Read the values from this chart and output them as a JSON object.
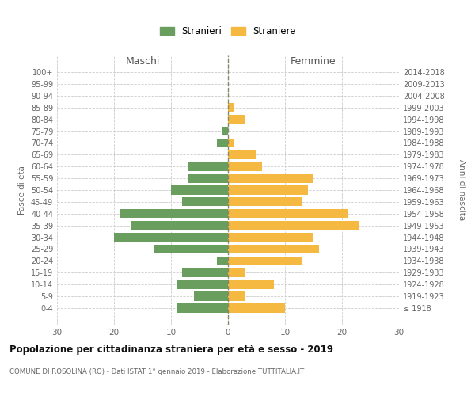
{
  "age_groups": [
    "100+",
    "95-99",
    "90-94",
    "85-89",
    "80-84",
    "75-79",
    "70-74",
    "65-69",
    "60-64",
    "55-59",
    "50-54",
    "45-49",
    "40-44",
    "35-39",
    "30-34",
    "25-29",
    "20-24",
    "15-19",
    "10-14",
    "5-9",
    "0-4"
  ],
  "birth_years": [
    "≤ 1918",
    "1919-1923",
    "1924-1928",
    "1929-1933",
    "1934-1938",
    "1939-1943",
    "1944-1948",
    "1949-1953",
    "1954-1958",
    "1959-1963",
    "1964-1968",
    "1969-1973",
    "1974-1978",
    "1979-1983",
    "1984-1988",
    "1989-1993",
    "1994-1998",
    "1999-2003",
    "2004-2008",
    "2009-2013",
    "2014-2018"
  ],
  "maschi": [
    0,
    0,
    0,
    0,
    0,
    1,
    2,
    0,
    7,
    7,
    10,
    8,
    19,
    17,
    20,
    13,
    2,
    8,
    9,
    6,
    9
  ],
  "femmine": [
    0,
    0,
    0,
    1,
    3,
    0,
    1,
    5,
    6,
    15,
    14,
    13,
    21,
    23,
    15,
    16,
    13,
    3,
    8,
    3,
    10
  ],
  "maschi_color": "#6a9e5e",
  "femmine_color": "#f5b942",
  "background_color": "#ffffff",
  "grid_color": "#cccccc",
  "title": "Popolazione per cittadinanza straniera per età e sesso - 2019",
  "subtitle": "COMUNE DI ROSOLINA (RO) - Dati ISTAT 1° gennaio 2019 - Elaborazione TUTTITALIA.IT",
  "ylabel_left": "Fasce di età",
  "ylabel_right": "Anni di nascita",
  "xlabel_left": "Maschi",
  "xlabel_right": "Femmine",
  "legend_maschi": "Stranieri",
  "legend_femmine": "Straniere",
  "xlim": 30,
  "bar_height": 0.75
}
